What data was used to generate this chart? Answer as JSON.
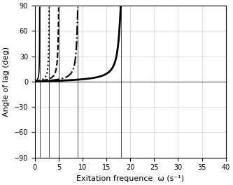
{
  "title": "",
  "xlabel": "Exitation frequence  ω (s⁻¹)",
  "ylabel": "Angle of lag (deg)",
  "ylim": [
    -90,
    90
  ],
  "xlim": [
    0,
    40
  ],
  "yticks": [
    -90,
    -60,
    -30,
    0,
    30,
    60,
    90
  ],
  "xticks": [
    0,
    5,
    10,
    15,
    20,
    25,
    30,
    35,
    40
  ],
  "omega0_values": [
    1,
    3,
    5,
    9,
    18
  ],
  "line_styles": [
    "-",
    ":",
    "--",
    "-.",
    "-"
  ],
  "line_widths": [
    1.2,
    1.5,
    1.5,
    1.5,
    2.0
  ],
  "damping": 0.03,
  "background_color": "#ffffff",
  "grid_color": "#cccccc"
}
